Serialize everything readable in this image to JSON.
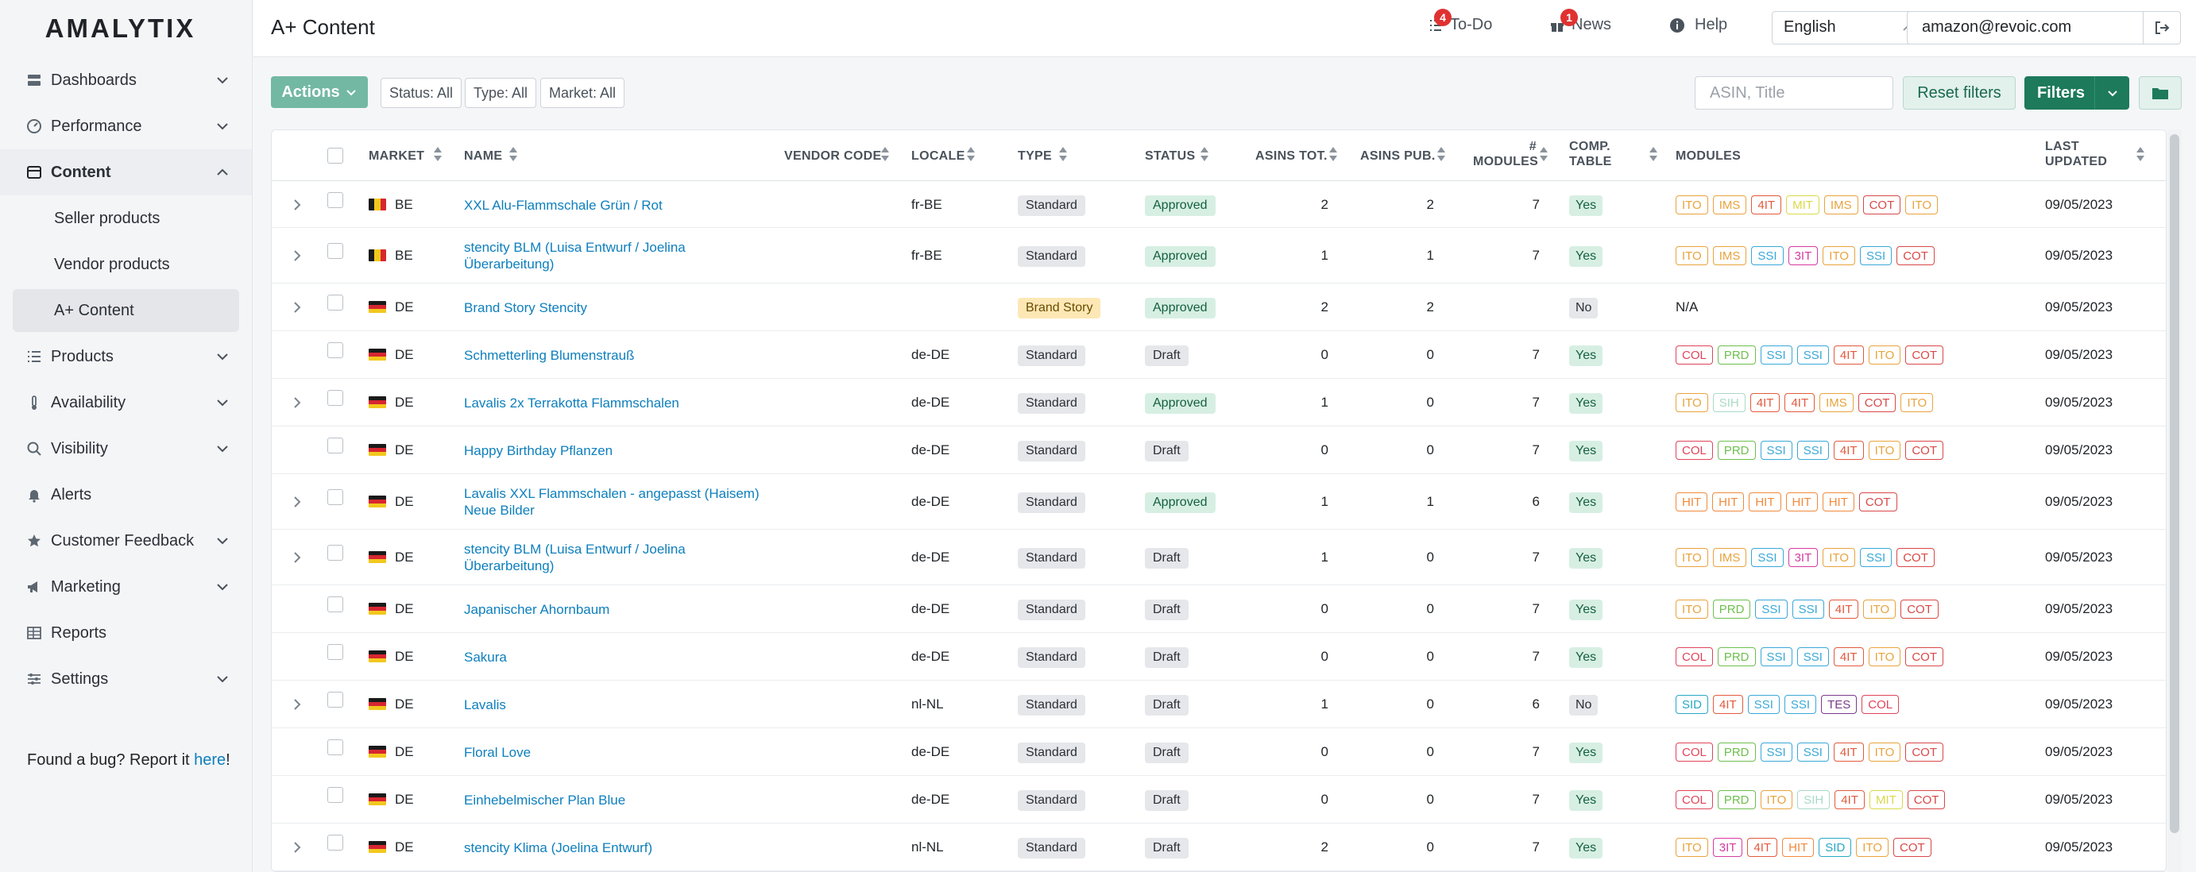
{
  "brand": "AMALYTIX",
  "sidebar": {
    "items": [
      {
        "label": "Dashboards",
        "icon": "dashboard-icon",
        "expandable": true
      },
      {
        "label": "Performance",
        "icon": "gauge-icon",
        "expandable": true
      },
      {
        "label": "Content",
        "icon": "content-icon",
        "expandable": true,
        "active": true,
        "children": [
          {
            "label": "Seller products"
          },
          {
            "label": "Vendor products"
          },
          {
            "label": "A+ Content",
            "active": true
          }
        ]
      },
      {
        "label": "Products",
        "icon": "list-icon",
        "expandable": true
      },
      {
        "label": "Availability",
        "icon": "thermometer-icon",
        "expandable": true
      },
      {
        "label": "Visibility",
        "icon": "search-icon",
        "expandable": true
      },
      {
        "label": "Alerts",
        "icon": "bell-icon",
        "expandable": false
      },
      {
        "label": "Customer Feedback",
        "icon": "star-icon",
        "expandable": true
      },
      {
        "label": "Marketing",
        "icon": "megaphone-icon",
        "expandable": true
      },
      {
        "label": "Reports",
        "icon": "table-icon",
        "expandable": false
      },
      {
        "label": "Settings",
        "icon": "sliders-icon",
        "expandable": true
      }
    ],
    "bug_text": "Found a bug? Report it ",
    "bug_link": "here",
    "bug_suffix": "!"
  },
  "header": {
    "title": "A+ Content",
    "todo_label": "To-Do",
    "todo_count": "4",
    "news_label": "News",
    "news_count": "1",
    "help_label": "Help",
    "language": "English",
    "email": "amazon@revoic.com"
  },
  "toolbar": {
    "actions_label": "Actions",
    "status_filter": "Status: All",
    "type_filter": "Type: All",
    "market_filter": "Market: All",
    "search_placeholder": "ASIN, Title",
    "reset_label": "Reset filters",
    "filters_label": "Filters"
  },
  "table": {
    "headers": {
      "market": "MARKET",
      "name": "NAME",
      "vendor_code": "VENDOR CODE",
      "locale": "LOCALE",
      "type": "TYPE",
      "status": "STATUS",
      "asins_tot": "ASINS TOT.",
      "asins_pub": "ASINS PUB.",
      "modules_1": "#",
      "modules_2": "MODULES",
      "comp_1": "COMP.",
      "comp_2": "TABLE",
      "modules_col": "MODULES",
      "updated_1": "LAST",
      "updated_2": "UPDATED"
    },
    "module_colors": {
      "ITO": "#e8a33d",
      "IMS": "#e8a33d",
      "4IT": "#e25a3c",
      "MIT": "#d9d94a",
      "COT": "#d94848",
      "SSI": "#3aa8d8",
      "3IT": "#d63aa0",
      "COL": "#e0445a",
      "PRD": "#6dbf4e",
      "SIH": "#a9d9c6",
      "HIT": "#f08a3c",
      "SID": "#27a9c4",
      "TES": "#7a3a8c"
    },
    "rows": [
      {
        "expand": true,
        "market": "BE",
        "name": [
          "XXL Alu-Flammschale Grün / Rot"
        ],
        "vendor": "",
        "locale": "fr-BE",
        "type": "Standard",
        "status": "Approved",
        "tot": "2",
        "pub": "2",
        "modules": "7",
        "comp": "Yes",
        "mods": [
          "ITO",
          "IMS",
          "4IT",
          "MIT",
          "IMS",
          "COT",
          "ITO"
        ],
        "updated": "09/05/2023"
      },
      {
        "expand": true,
        "market": "BE",
        "name": [
          "stencity BLM (Luisa Entwurf / Joelina",
          "Überarbeitung)"
        ],
        "vendor": "",
        "locale": "fr-BE",
        "type": "Standard",
        "status": "Approved",
        "tot": "1",
        "pub": "1",
        "modules": "7",
        "comp": "Yes",
        "mods": [
          "ITO",
          "IMS",
          "SSI",
          "3IT",
          "ITO",
          "SSI",
          "COT"
        ],
        "updated": "09/05/2023"
      },
      {
        "expand": true,
        "market": "DE",
        "name": [
          "Brand Story Stencity"
        ],
        "vendor": "",
        "locale": "",
        "type": "Brand Story",
        "status": "Approved",
        "tot": "2",
        "pub": "2",
        "modules": "",
        "comp": "No",
        "mods": [],
        "mods_text": "N/A",
        "updated": "09/05/2023"
      },
      {
        "expand": false,
        "market": "DE",
        "name": [
          "Schmetterling Blumenstrauß"
        ],
        "vendor": "",
        "locale": "de-DE",
        "type": "Standard",
        "status": "Draft",
        "tot": "0",
        "pub": "0",
        "modules": "7",
        "comp": "Yes",
        "mods": [
          "COL",
          "PRD",
          "SSI",
          "SSI",
          "4IT",
          "ITO",
          "COT"
        ],
        "updated": "09/05/2023"
      },
      {
        "expand": true,
        "market": "DE",
        "name": [
          "Lavalis 2x Terrakotta Flammschalen"
        ],
        "vendor": "",
        "locale": "de-DE",
        "type": "Standard",
        "status": "Approved",
        "tot": "1",
        "pub": "0",
        "modules": "7",
        "comp": "Yes",
        "mods": [
          "ITO",
          "SIH",
          "4IT",
          "4IT",
          "IMS",
          "COT",
          "ITO"
        ],
        "updated": "09/05/2023"
      },
      {
        "expand": false,
        "market": "DE",
        "name": [
          "Happy Birthday Pflanzen"
        ],
        "vendor": "",
        "locale": "de-DE",
        "type": "Standard",
        "status": "Draft",
        "tot": "0",
        "pub": "0",
        "modules": "7",
        "comp": "Yes",
        "mods": [
          "COL",
          "PRD",
          "SSI",
          "SSI",
          "4IT",
          "ITO",
          "COT"
        ],
        "updated": "09/05/2023"
      },
      {
        "expand": true,
        "market": "DE",
        "name": [
          "Lavalis XXL Flammschalen - angepasst (Haisem)",
          "Neue Bilder"
        ],
        "vendor": "",
        "locale": "de-DE",
        "type": "Standard",
        "status": "Approved",
        "tot": "1",
        "pub": "1",
        "modules": "6",
        "comp": "Yes",
        "mods": [
          "HIT",
          "HIT",
          "HIT",
          "HIT",
          "HIT",
          "COT"
        ],
        "updated": "09/05/2023"
      },
      {
        "expand": true,
        "market": "DE",
        "name": [
          "stencity BLM (Luisa Entwurf / Joelina",
          "Überarbeitung)"
        ],
        "vendor": "",
        "locale": "de-DE",
        "type": "Standard",
        "status": "Draft",
        "tot": "1",
        "pub": "0",
        "modules": "7",
        "comp": "Yes",
        "mods": [
          "ITO",
          "IMS",
          "SSI",
          "3IT",
          "ITO",
          "SSI",
          "COT"
        ],
        "updated": "09/05/2023"
      },
      {
        "expand": false,
        "market": "DE",
        "name": [
          "Japanischer Ahornbaum"
        ],
        "vendor": "",
        "locale": "de-DE",
        "type": "Standard",
        "status": "Draft",
        "tot": "0",
        "pub": "0",
        "modules": "7",
        "comp": "Yes",
        "mods": [
          "ITO",
          "PRD",
          "SSI",
          "SSI",
          "4IT",
          "ITO",
          "COT"
        ],
        "updated": "09/05/2023"
      },
      {
        "expand": false,
        "market": "DE",
        "name": [
          "Sakura"
        ],
        "vendor": "",
        "locale": "de-DE",
        "type": "Standard",
        "status": "Draft",
        "tot": "0",
        "pub": "0",
        "modules": "7",
        "comp": "Yes",
        "mods": [
          "COL",
          "PRD",
          "SSI",
          "SSI",
          "4IT",
          "ITO",
          "COT"
        ],
        "updated": "09/05/2023"
      },
      {
        "expand": true,
        "market": "DE",
        "name": [
          "Lavalis"
        ],
        "vendor": "",
        "locale": "nl-NL",
        "type": "Standard",
        "status": "Draft",
        "tot": "1",
        "pub": "0",
        "modules": "6",
        "comp": "No",
        "mods": [
          "SID",
          "4IT",
          "SSI",
          "SSI",
          "TES",
          "COL"
        ],
        "updated": "09/05/2023"
      },
      {
        "expand": false,
        "market": "DE",
        "name": [
          "Floral Love"
        ],
        "vendor": "",
        "locale": "de-DE",
        "type": "Standard",
        "status": "Draft",
        "tot": "0",
        "pub": "0",
        "modules": "7",
        "comp": "Yes",
        "mods": [
          "COL",
          "PRD",
          "SSI",
          "SSI",
          "4IT",
          "ITO",
          "COT"
        ],
        "updated": "09/05/2023"
      },
      {
        "expand": false,
        "market": "DE",
        "name": [
          "Einhebelmischer Plan Blue"
        ],
        "vendor": "",
        "locale": "de-DE",
        "type": "Standard",
        "status": "Draft",
        "tot": "0",
        "pub": "0",
        "modules": "7",
        "comp": "Yes",
        "mods": [
          "COL",
          "PRD",
          "ITO",
          "SIH",
          "4IT",
          "MIT",
          "COT"
        ],
        "updated": "09/05/2023"
      },
      {
        "expand": true,
        "market": "DE",
        "name": [
          "stencity Klima (Joelina Entwurf)"
        ],
        "vendor": "",
        "locale": "nl-NL",
        "type": "Standard",
        "status": "Draft",
        "tot": "2",
        "pub": "0",
        "modules": "7",
        "comp": "Yes",
        "mods": [
          "ITO",
          "3IT",
          "4IT",
          "HIT",
          "SID",
          "ITO",
          "COT"
        ],
        "updated": "09/05/2023"
      }
    ]
  }
}
